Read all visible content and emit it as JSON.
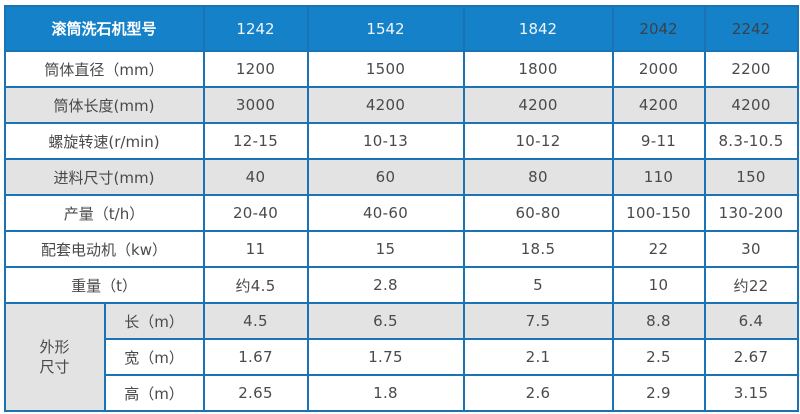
{
  "colors": {
    "header_background": "#1581c8",
    "grid_border": "#1a73b5",
    "shaded_row_background": "#e3e3e3",
    "body_text": "#4a4a4a",
    "header_text_light": "#eef5fb",
    "header_text_dark": "#39434b"
  },
  "chart_data": {
    "type": "table",
    "title": "滚筒洗石机型号",
    "columns": [
      "1242",
      "1542",
      "1842",
      "2042",
      "2242"
    ],
    "header_text_styles": [
      "light",
      "light",
      "light",
      "dark",
      "dark"
    ],
    "rows": [
      {
        "label": "筒体直径（mm）",
        "values": [
          "1200",
          "1500",
          "1800",
          "2000",
          "2200"
        ],
        "shaded": false
      },
      {
        "label": "筒体长度(mm)",
        "values": [
          "3000",
          "4200",
          "4200",
          "4200",
          "4200"
        ],
        "shaded": true
      },
      {
        "label": "螺旋转速(r/min)",
        "values": [
          "12-15",
          "10-13",
          "10-12",
          "9-11",
          "8.3-10.5"
        ],
        "shaded": false
      },
      {
        "label": "进料尺寸(mm)",
        "values": [
          "40",
          "60",
          "80",
          "110",
          "150"
        ],
        "shaded": true
      },
      {
        "label": "产量（t/h）",
        "values": [
          "20-40",
          "40-60",
          "60-80",
          "100-150",
          "130-200"
        ],
        "shaded": false
      },
      {
        "label": "配套电动机（kw）",
        "values": [
          "11",
          "15",
          "18.5",
          "22",
          "30"
        ],
        "shaded": false
      },
      {
        "label": "重量（t）",
        "values": [
          "约4.5",
          "2.8",
          "5",
          "10",
          "约22"
        ],
        "shaded": false
      }
    ],
    "dimension_group": {
      "label_lines": [
        "外形",
        "尺寸"
      ],
      "rows": [
        {
          "label": "长（m）",
          "values": [
            "4.5",
            "6.5",
            "7.5",
            "8.8",
            "6.4"
          ],
          "shaded": true
        },
        {
          "label": "宽（m）",
          "values": [
            "1.67",
            "1.75",
            "2.1",
            "2.5",
            "2.67"
          ],
          "shaded": false
        },
        {
          "label": "高（m）",
          "values": [
            "2.65",
            "1.8",
            "2.6",
            "2.9",
            "3.15"
          ],
          "shaded": false
        }
      ]
    }
  }
}
